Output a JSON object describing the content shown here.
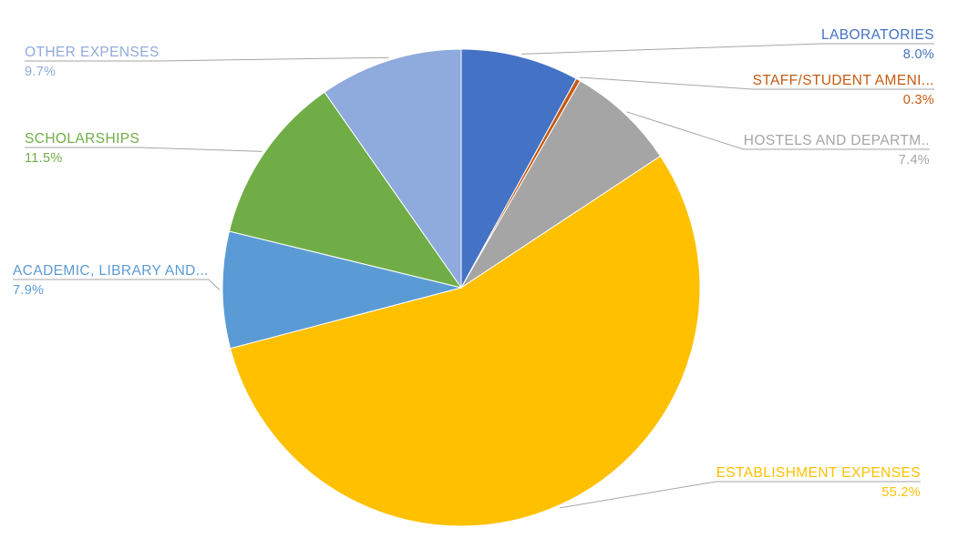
{
  "chart_data": {
    "type": "pie",
    "title": "",
    "direction": "clockwise",
    "start_angle_deg": 0,
    "background": "#FFFFFF",
    "leader_line_color": "#A6A6A6",
    "slices": [
      {
        "label": "LABORATORIES",
        "value": 8.0,
        "display_pct": "8.0%",
        "color": "#4472C4"
      },
      {
        "label": "STAFF/STUDENT AMENI...",
        "value": 0.3,
        "display_pct": "0.3%",
        "color": "#C55A11"
      },
      {
        "label": "HOSTELS AND DEPARTM..",
        "value": 7.4,
        "display_pct": "7.4%",
        "color": "#A5A5A5"
      },
      {
        "label": "ESTABLISHMENT EXPENSES",
        "value": 55.2,
        "display_pct": "55.2%",
        "color": "#FFC000"
      },
      {
        "label": "ACADEMIC, LIBRARY AND...",
        "value": 7.9,
        "display_pct": "7.9%",
        "color": "#5B9BD5"
      },
      {
        "label": "SCHOLARSHIPS",
        "value": 11.5,
        "display_pct": "11.5%",
        "color": "#70AD47"
      },
      {
        "label": "OTHER EXPENSES",
        "value": 9.7,
        "display_pct": "9.7%",
        "color": "#8FAADC"
      }
    ]
  }
}
